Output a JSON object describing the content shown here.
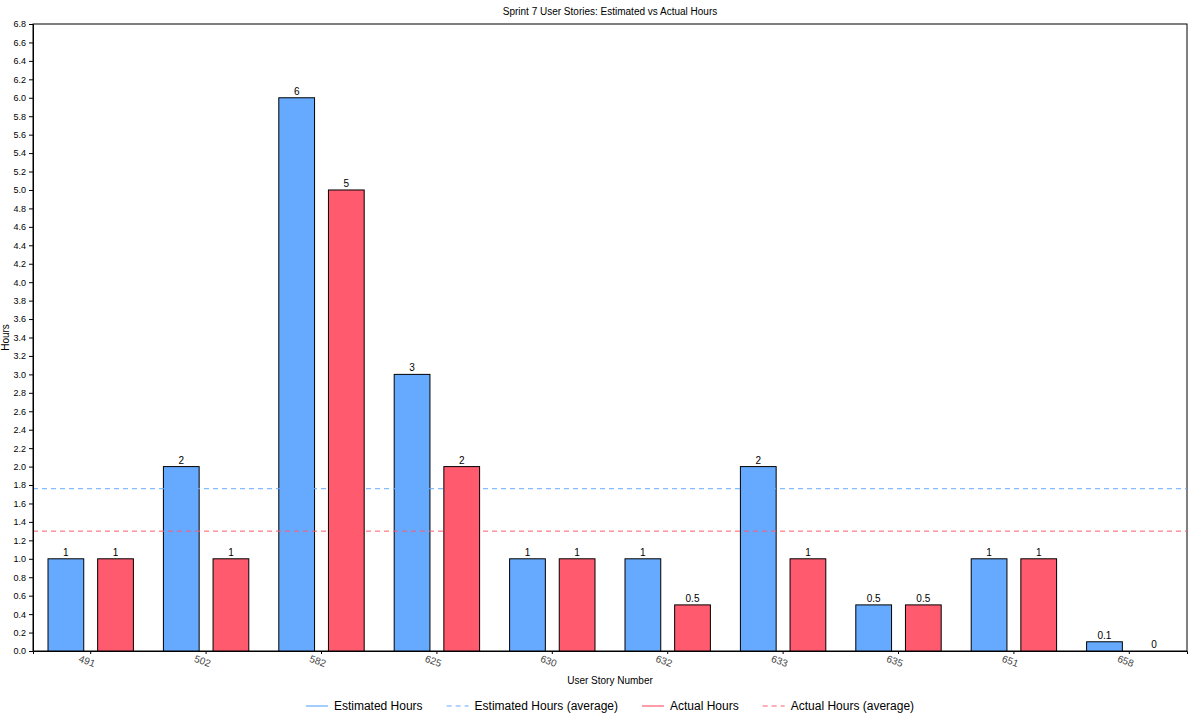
{
  "chart_data": {
    "type": "bar",
    "title": "Sprint 7 User Stories: Estimated vs Actual Hours",
    "x_label": "User Story Number",
    "y_label": "Hours",
    "categories": [
      "491",
      "502",
      "582",
      "625",
      "630",
      "632",
      "633",
      "635",
      "651",
      "658"
    ],
    "series": [
      {
        "name": "Estimated Hours",
        "color": "#66aaff",
        "type": "bar",
        "values": [
          1,
          2,
          6,
          3,
          1,
          1,
          2,
          0.5,
          1,
          0.1
        ]
      },
      {
        "name": "Estimated Hours (average)",
        "color": "#66aaff",
        "type": "hline",
        "line_style": "dashed",
        "value": 1.76
      },
      {
        "name": "Actual Hours",
        "color": "#ff5a6e",
        "type": "bar",
        "values": [
          1,
          1,
          5,
          2,
          1,
          0.5,
          1,
          0.5,
          1,
          0
        ]
      },
      {
        "name": "Actual Hours (average)",
        "color": "#ff5a6e",
        "type": "hline",
        "line_style": "dashed",
        "value": 1.3
      }
    ],
    "ylim": [
      0,
      6.8
    ],
    "yticks": [
      {
        "value": 0,
        "label": "0.0"
      },
      0.2,
      0.4,
      0.6,
      0.8,
      {
        "value": 1,
        "label": "1.0"
      },
      1.2,
      1.4,
      1.6,
      1.8,
      {
        "value": 2,
        "label": "2.0"
      },
      2.2,
      2.4,
      2.6,
      2.8,
      {
        "value": 3,
        "label": "3.0"
      },
      3.2,
      3.4,
      3.6,
      3.8,
      {
        "value": 4,
        "label": "4.0"
      },
      4.2,
      4.4,
      4.6,
      4.8,
      {
        "value": 5,
        "label": "5.0"
      },
      5.2,
      5.4,
      5.6,
      5.8,
      {
        "value": 6,
        "label": "6.0"
      },
      6.2,
      6.4,
      6.6,
      6.8
    ],
    "data_labels": true,
    "legend": "bottom",
    "grid": false
  }
}
